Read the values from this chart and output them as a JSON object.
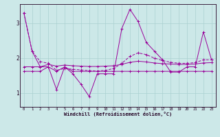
{
  "xlabel": "Windchill (Refroidissement éolien,°C)",
  "x_hours": [
    0,
    1,
    2,
    3,
    4,
    5,
    6,
    7,
    8,
    9,
    10,
    11,
    12,
    13,
    14,
    15,
    16,
    17,
    18,
    19,
    20,
    21,
    22,
    23
  ],
  "line1_y": [
    3.3,
    2.2,
    1.75,
    1.75,
    1.1,
    1.75,
    1.55,
    1.25,
    0.9,
    1.55,
    1.55,
    1.55,
    2.85,
    3.4,
    3.05,
    2.45,
    2.2,
    1.95,
    1.6,
    1.6,
    1.75,
    1.75,
    2.75,
    1.95
  ],
  "line2_y": [
    1.62,
    1.62,
    1.62,
    1.75,
    1.62,
    1.75,
    1.62,
    1.62,
    1.62,
    1.62,
    1.62,
    1.62,
    1.62,
    1.62,
    1.62,
    1.62,
    1.62,
    1.62,
    1.62,
    1.62,
    1.62,
    1.62,
    1.62,
    1.62
  ],
  "line3_y": [
    3.3,
    2.2,
    1.9,
    1.85,
    1.65,
    1.7,
    1.68,
    1.66,
    1.64,
    1.63,
    1.65,
    1.7,
    1.85,
    2.05,
    2.15,
    2.1,
    2.0,
    1.93,
    1.88,
    1.85,
    1.85,
    1.87,
    1.95,
    1.95
  ],
  "line4_y": [
    1.75,
    1.75,
    1.75,
    1.82,
    1.77,
    1.8,
    1.78,
    1.77,
    1.76,
    1.76,
    1.77,
    1.78,
    1.82,
    1.88,
    1.91,
    1.89,
    1.86,
    1.84,
    1.83,
    1.82,
    1.82,
    1.83,
    1.86,
    1.87
  ],
  "bg_color": "#cce8e8",
  "grid_color": "#aad0d0",
  "line_color": "#990099",
  "ylim": [
    0.6,
    3.55
  ],
  "yticks": [
    1,
    2,
    3
  ],
  "xlim": [
    -0.5,
    23.5
  ]
}
